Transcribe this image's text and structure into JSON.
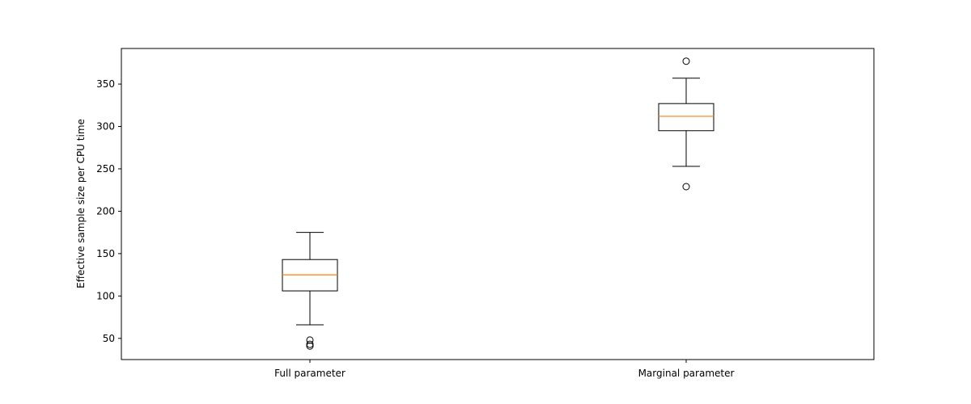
{
  "chart_data": {
    "type": "box",
    "title": "",
    "xlabel": "",
    "ylabel": "Effective sample size per CPU time",
    "ylim": [
      25,
      392
    ],
    "yticks": [
      50,
      100,
      150,
      200,
      250,
      300,
      350
    ],
    "grid": false,
    "categories": [
      "Full parameter",
      "Marginal parameter"
    ],
    "boxes": [
      {
        "label": "Full parameter",
        "whisker_low": 66,
        "q1": 106,
        "median": 125,
        "q3": 143,
        "whisker_high": 175,
        "outliers": [
          48,
          43,
          41
        ]
      },
      {
        "label": "Marginal parameter",
        "whisker_low": 253,
        "q1": 295,
        "median": 312,
        "q3": 327,
        "whisker_high": 357,
        "outliers": [
          377,
          229
        ]
      }
    ],
    "colors": {
      "box": "#000000",
      "median": "#ff7f0e",
      "outlier": "#000000"
    }
  }
}
